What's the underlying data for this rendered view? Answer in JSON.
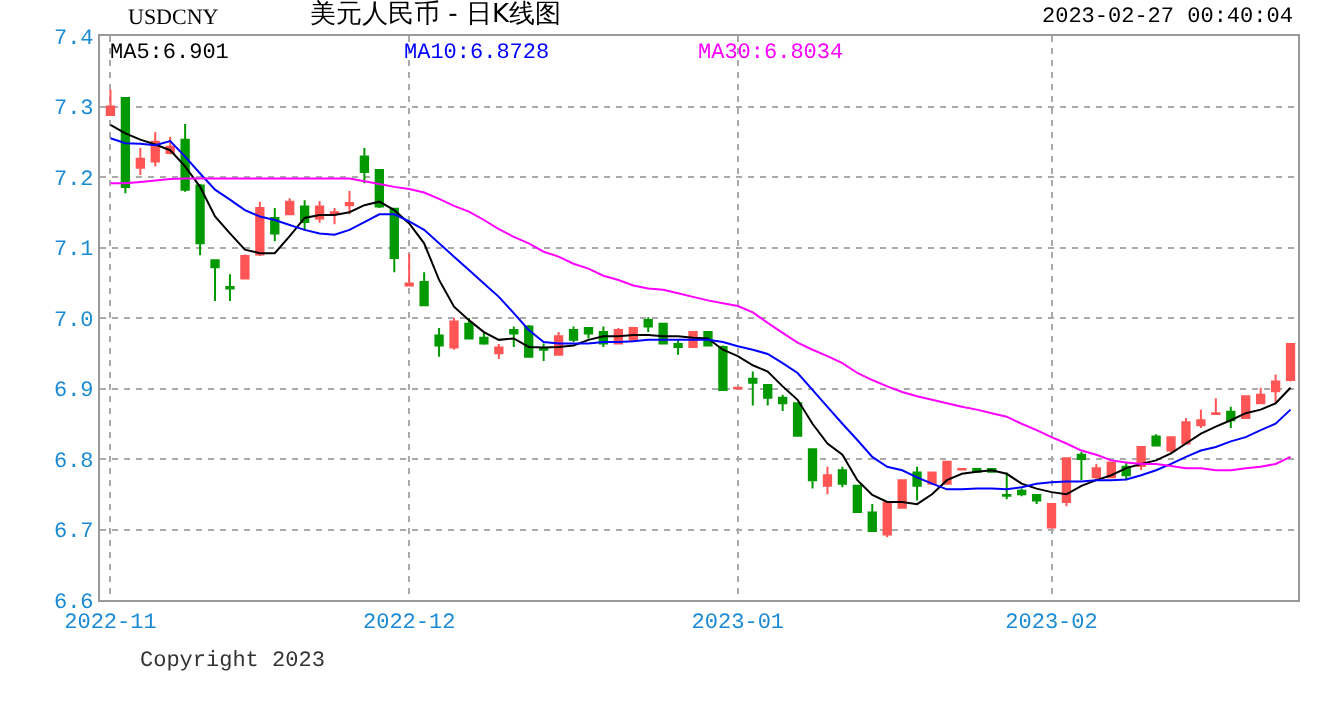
{
  "chart_data": {
    "type": "candlestick",
    "title": "美元人民币 - 日K线图",
    "subtitle": "USDCNY",
    "annotations": [
      "2023-02-27 00:40:04",
      "Copyright 2023"
    ],
    "categories": [
      "2022-11",
      null,
      null,
      null,
      null,
      null,
      null,
      null,
      null,
      null,
      null,
      null,
      null,
      null,
      null,
      null,
      null,
      null,
      null,
      null,
      "2022-12",
      null,
      null,
      null,
      null,
      null,
      null,
      null,
      null,
      null,
      null,
      null,
      null,
      null,
      null,
      null,
      null,
      null,
      null,
      null,
      null,
      null,
      "2023-01",
      null,
      null,
      null,
      null,
      null,
      null,
      null,
      null,
      null,
      null,
      null,
      null,
      null,
      null,
      null,
      null,
      null,
      null,
      null,
      null,
      "2023-02",
      null,
      null,
      null,
      null,
      null,
      null,
      null,
      null,
      null,
      null,
      null,
      null,
      null,
      null,
      null,
      null
    ],
    "ohlc": [
      [
        7.288,
        7.324,
        7.288,
        7.3
      ],
      [
        7.312,
        7.312,
        7.177,
        7.186
      ],
      [
        7.213,
        7.241,
        7.203,
        7.226
      ],
      [
        7.222,
        7.264,
        7.215,
        7.25
      ],
      [
        7.234,
        7.257,
        7.232,
        7.243
      ],
      [
        7.253,
        7.275,
        7.179,
        7.182
      ],
      [
        7.188,
        7.19,
        7.089,
        7.106
      ],
      [
        7.082,
        7.082,
        7.024,
        7.072
      ],
      [
        7.044,
        7.062,
        7.024,
        7.042
      ],
      [
        7.056,
        7.09,
        7.056,
        7.088
      ],
      [
        7.09,
        7.165,
        7.088,
        7.156
      ],
      [
        7.142,
        7.156,
        7.109,
        7.12
      ],
      [
        7.147,
        7.17,
        7.147,
        7.165
      ],
      [
        7.158,
        7.167,
        7.125,
        7.136
      ],
      [
        7.141,
        7.166,
        7.135,
        7.158
      ],
      [
        7.148,
        7.156,
        7.133,
        7.15
      ],
      [
        7.16,
        7.18,
        7.147,
        7.163
      ],
      [
        7.229,
        7.241,
        7.191,
        7.207
      ],
      [
        7.21,
        7.21,
        7.156,
        7.158
      ],
      [
        7.155,
        7.155,
        7.065,
        7.085
      ],
      [
        7.046,
        7.091,
        7.046,
        7.049
      ],
      [
        7.051,
        7.065,
        7.018,
        7.018
      ],
      [
        6.975,
        6.986,
        6.945,
        6.961
      ],
      [
        6.958,
        7.0,
        6.955,
        6.995
      ],
      [
        6.992,
        7.0,
        6.97,
        6.971
      ],
      [
        6.972,
        6.98,
        6.962,
        6.964
      ],
      [
        6.95,
        6.963,
        6.942,
        6.958
      ],
      [
        6.983,
        6.988,
        6.959,
        6.978
      ],
      [
        6.988,
        6.99,
        6.945,
        6.945
      ],
      [
        6.956,
        6.964,
        6.939,
        6.955
      ],
      [
        6.948,
        6.98,
        6.948,
        6.974
      ],
      [
        6.983,
        6.988,
        6.966,
        6.969
      ],
      [
        6.986,
        6.986,
        6.971,
        6.978
      ],
      [
        6.98,
        6.988,
        6.959,
        6.964
      ],
      [
        6.964,
        6.986,
        6.964,
        6.983
      ],
      [
        6.969,
        6.986,
        6.969,
        6.986
      ],
      [
        6.997,
        7.001,
        6.98,
        6.988
      ],
      [
        6.992,
        6.992,
        6.964,
        6.964
      ],
      [
        6.963,
        6.969,
        6.948,
        6.959
      ],
      [
        6.959,
        6.98,
        6.959,
        6.98
      ],
      [
        6.98,
        6.98,
        6.961,
        6.961
      ],
      [
        6.959,
        6.961,
        6.898,
        6.898
      ],
      [
        6.9,
        6.902,
        6.899,
        6.901
      ],
      [
        6.914,
        6.924,
        6.876,
        6.908
      ],
      [
        6.905,
        6.905,
        6.876,
        6.887
      ],
      [
        6.887,
        6.891,
        6.868,
        6.879
      ],
      [
        6.879,
        6.879,
        6.833,
        6.833
      ],
      [
        6.814,
        6.814,
        6.758,
        6.77
      ],
      [
        6.762,
        6.789,
        6.75,
        6.777
      ],
      [
        6.784,
        6.789,
        6.76,
        6.765
      ],
      [
        6.762,
        6.762,
        6.725,
        6.725
      ],
      [
        6.724,
        6.736,
        6.698,
        6.698
      ],
      [
        6.693,
        6.738,
        6.689,
        6.738
      ],
      [
        6.731,
        6.771,
        6.731,
        6.77
      ],
      [
        6.781,
        6.789,
        6.741,
        6.762
      ],
      [
        6.765,
        6.781,
        6.765,
        6.781
      ],
      [
        6.765,
        6.796,
        6.765,
        6.796
      ],
      [
        6.785,
        6.786,
        6.785,
        6.786
      ],
      [
        6.786,
        6.787,
        6.781,
        6.782
      ],
      [
        6.786,
        6.787,
        6.781,
        6.782
      ],
      [
        6.749,
        6.781,
        6.743,
        6.748
      ],
      [
        6.755,
        6.758,
        6.747,
        6.75
      ],
      [
        6.749,
        6.749,
        6.736,
        6.741
      ],
      [
        6.703,
        6.736,
        6.703,
        6.736
      ],
      [
        6.739,
        6.801,
        6.733,
        6.801
      ],
      [
        6.806,
        6.81,
        6.77,
        6.8
      ],
      [
        6.774,
        6.793,
        6.77,
        6.787
      ],
      [
        6.774,
        6.795,
        6.774,
        6.795
      ],
      [
        6.789,
        6.796,
        6.77,
        6.777
      ],
      [
        6.79,
        6.817,
        6.784,
        6.817
      ],
      [
        6.832,
        6.835,
        6.819,
        6.819
      ],
      [
        6.812,
        6.831,
        6.808,
        6.831
      ],
      [
        6.822,
        6.858,
        6.822,
        6.852
      ],
      [
        6.848,
        6.87,
        6.844,
        6.855
      ],
      [
        6.864,
        6.886,
        6.864,
        6.865
      ],
      [
        6.867,
        6.874,
        6.844,
        6.855
      ],
      [
        6.858,
        6.889,
        6.858,
        6.889
      ],
      [
        6.879,
        6.901,
        6.879,
        6.891
      ],
      [
        6.896,
        6.92,
        6.879,
        6.91
      ],
      [
        6.912,
        6.963,
        6.91,
        6.963
      ]
    ],
    "series": [
      {
        "type": "line",
        "name": "MA5:6.901",
        "color": "#000000",
        "values": [
          7.274,
          7.262,
          7.253,
          7.246,
          7.238,
          7.215,
          7.186,
          7.144,
          7.12,
          7.097,
          7.092,
          7.092,
          7.116,
          7.142,
          7.146,
          7.146,
          7.15,
          7.16,
          7.165,
          7.153,
          7.134,
          7.106,
          7.054,
          7.016,
          6.997,
          6.98,
          6.969,
          6.971,
          6.959,
          6.958,
          6.959,
          6.961,
          6.969,
          6.974,
          6.974,
          6.976,
          6.976,
          6.974,
          6.974,
          6.972,
          6.971,
          6.955,
          6.946,
          6.933,
          6.924,
          6.903,
          6.884,
          6.85,
          6.822,
          6.806,
          6.77,
          6.749,
          6.739,
          6.739,
          6.736,
          6.75,
          6.77,
          6.779,
          6.782,
          6.784,
          6.779,
          6.765,
          6.758,
          6.753,
          6.75,
          6.762,
          6.77,
          6.777,
          6.787,
          6.793,
          6.798,
          6.808,
          6.822,
          6.836,
          6.846,
          6.855,
          6.865,
          6.87,
          6.879,
          6.901
        ]
      },
      {
        "type": "line",
        "name": "MA10:6.8728",
        "color": "#0000ff",
        "values": [
          7.255,
          7.248,
          7.247,
          7.245,
          7.251,
          7.229,
          7.205,
          7.182,
          7.168,
          7.153,
          7.144,
          7.139,
          7.132,
          7.125,
          7.12,
          7.118,
          7.125,
          7.136,
          7.147,
          7.147,
          7.137,
          7.125,
          7.106,
          7.087,
          7.068,
          7.049,
          7.03,
          7.007,
          6.983,
          6.966,
          6.964,
          6.964,
          6.964,
          6.966,
          6.966,
          6.967,
          6.969,
          6.969,
          6.969,
          6.969,
          6.969,
          6.966,
          6.96,
          6.955,
          6.949,
          6.936,
          6.922,
          6.898,
          6.874,
          6.85,
          6.827,
          6.803,
          6.789,
          6.784,
          6.774,
          6.765,
          6.757,
          6.757,
          6.758,
          6.758,
          6.757,
          6.76,
          6.765,
          6.767,
          6.768,
          6.768,
          6.77,
          6.77,
          6.771,
          6.777,
          6.784,
          6.793,
          6.803,
          6.812,
          6.817,
          6.825,
          6.831,
          6.841,
          6.85,
          6.87
        ]
      },
      {
        "type": "line",
        "name": "MA30:6.8034",
        "color": "#ff00ff",
        "values": [
          7.191,
          7.191,
          7.193,
          7.195,
          7.197,
          7.198,
          7.198,
          7.198,
          7.198,
          7.198,
          7.198,
          7.198,
          7.198,
          7.198,
          7.198,
          7.198,
          7.198,
          7.194,
          7.19,
          7.186,
          7.183,
          7.178,
          7.169,
          7.159,
          7.151,
          7.139,
          7.126,
          7.115,
          7.106,
          7.094,
          7.087,
          7.077,
          7.07,
          7.06,
          7.054,
          7.046,
          7.042,
          7.04,
          7.035,
          7.03,
          7.025,
          7.021,
          7.017,
          7.008,
          6.993,
          6.979,
          6.965,
          6.955,
          6.946,
          6.936,
          6.922,
          6.912,
          6.903,
          6.895,
          6.889,
          6.884,
          6.879,
          6.874,
          6.87,
          6.865,
          6.86,
          6.85,
          6.841,
          6.831,
          6.822,
          6.812,
          6.806,
          6.798,
          6.795,
          6.793,
          6.793,
          6.79,
          6.787,
          6.787,
          6.784,
          6.784,
          6.787,
          6.789,
          6.793,
          6.803
        ]
      }
    ],
    "ylim": [
      6.6,
      7.4
    ],
    "yticks": [
      6.6,
      6.7,
      6.8,
      6.9,
      {
        "value": 7,
        "label": "7.0"
      },
      7.1,
      7.2,
      7.3,
      7.4
    ],
    "grid": true
  }
}
